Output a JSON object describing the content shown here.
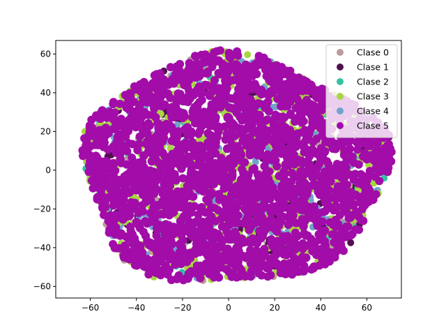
{
  "chart_data": {
    "type": "scatter",
    "title": "",
    "xlabel": "",
    "ylabel": "",
    "xlim": [
      -75,
      75
    ],
    "ylim": [
      -66,
      67
    ],
    "xticks": [
      -60,
      -40,
      -20,
      0,
      20,
      40,
      60
    ],
    "yticks": [
      -60,
      -40,
      -20,
      0,
      20,
      40,
      60
    ],
    "grid": false,
    "legend_position": "top-right",
    "series": [
      {
        "name": "Clase 0",
        "color": "#bc9b9f"
      },
      {
        "name": "Clase 1",
        "color": "#520f52"
      },
      {
        "name": "Clase 2",
        "color": "#35c2a4"
      },
      {
        "name": "Clase 3",
        "color": "#a8d641"
      },
      {
        "name": "Clase 4",
        "color": "#72a3cc"
      },
      {
        "name": "Clase 5",
        "color": "#a20ca8"
      }
    ],
    "cloud": {
      "center": [
        2,
        0
      ],
      "radius_x": 66,
      "radius_y": 59
    }
  }
}
